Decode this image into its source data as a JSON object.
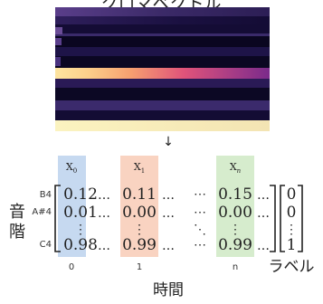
{
  "title": "クロマベクトル",
  "pitch_axis_label": [
    "音",
    "階"
  ],
  "time_axis_label": "時間",
  "label_caption": "ラベル",
  "pitch_labels": [
    "B4",
    "A#4",
    "C4"
  ],
  "column_headers": [
    "X",
    "X",
    "X"
  ],
  "column_subscripts": [
    "0",
    "1",
    "n"
  ],
  "column_indices": [
    "0",
    "1",
    "n"
  ],
  "columns": [
    {
      "rows": [
        "0.12",
        "0.01",
        "⋮",
        "0.98"
      ]
    },
    {
      "rows": [
        "0.11",
        "0.00",
        "⋮",
        "0.99"
      ]
    },
    {
      "rows": [
        "0.15",
        "0.00",
        "⋮",
        "0.99"
      ]
    }
  ],
  "ellipsis_h": "…",
  "ellipsis_h_mid": "⋯",
  "ellipsis_v": "⋮",
  "ellipsis_d": "⋱",
  "labels_vector": [
    "0",
    "0",
    "⋮",
    "1"
  ],
  "arrow_glyph": "↓",
  "colors": {
    "column_0": "#c6d9f0",
    "column_1": "#f9d3c1",
    "column_2": "#d6eccd",
    "heatmap_bg": "#0d0829"
  },
  "heatmap_rows": [
    {
      "row": 0,
      "level": 0.22
    },
    {
      "row": 1,
      "level": 0.3
    },
    {
      "row": 2,
      "level": 0.1
    },
    {
      "row": 3,
      "level": 0.18
    },
    {
      "row": 4,
      "level": 0.05
    },
    {
      "row": 5,
      "level": 0.12
    },
    {
      "row": 6,
      "level": 0.82
    },
    {
      "row": 7,
      "level": 0.25
    },
    {
      "row": 8,
      "level": 0.08
    },
    {
      "row": 9,
      "level": 0.15
    },
    {
      "row": 10,
      "level": 0.3
    },
    {
      "row": 11,
      "level": 0.95
    }
  ]
}
